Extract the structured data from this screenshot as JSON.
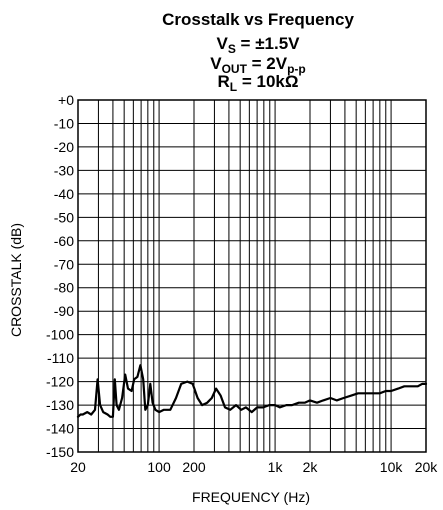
{
  "chart_data": {
    "type": "line",
    "title": {
      "line1": "Crosstalk vs Frequency",
      "line2_main": "V",
      "line2_sub": "S",
      "line2_rest": " = ±1.5V",
      "line3_main": "V",
      "line3_sub": "OUT",
      "line3_rest": " = 2V",
      "line3_sub2": "p-p",
      "line4_main": "R",
      "line4_sub": "L",
      "line4_rest": " = 10kΩ"
    },
    "xlabel": "FREQUENCY (Hz)",
    "ylabel": "CROSSTALK (dB)",
    "x_scale": "log",
    "xlim": [
      20,
      20000
    ],
    "ylim": [
      -150,
      0
    ],
    "grid": true,
    "yticks": [
      {
        "value": 0,
        "label": "+0"
      },
      {
        "value": -10,
        "label": "-10"
      },
      {
        "value": -20,
        "label": "-20"
      },
      {
        "value": -30,
        "label": "-30"
      },
      {
        "value": -40,
        "label": "-40"
      },
      {
        "value": -50,
        "label": "-50"
      },
      {
        "value": -60,
        "label": "-60"
      },
      {
        "value": -70,
        "label": "-70"
      },
      {
        "value": -80,
        "label": "-80"
      },
      {
        "value": -90,
        "label": "-90"
      },
      {
        "value": -100,
        "label": "-100"
      },
      {
        "value": -110,
        "label": "-110"
      },
      {
        "value": -120,
        "label": "-120"
      },
      {
        "value": -130,
        "label": "-130"
      },
      {
        "value": -140,
        "label": "-140"
      },
      {
        "value": -150,
        "label": "-150"
      }
    ],
    "xticks": [
      {
        "value": 20,
        "label": "20"
      },
      {
        "value": 100,
        "label": "100"
      },
      {
        "value": 200,
        "label": "200"
      },
      {
        "value": 1000,
        "label": "1k"
      },
      {
        "value": 2000,
        "label": "2k"
      },
      {
        "value": 10000,
        "label": "10k"
      },
      {
        "value": 20000,
        "label": "20k"
      }
    ],
    "series": [
      {
        "points": [
          [
            20,
            -135
          ],
          [
            21,
            -134
          ],
          [
            22,
            -134
          ],
          [
            24,
            -133
          ],
          [
            26,
            -134
          ],
          [
            28,
            -132
          ],
          [
            29.5,
            -119
          ],
          [
            31,
            -130
          ],
          [
            33,
            -133
          ],
          [
            36,
            -134
          ],
          [
            38,
            -135
          ],
          [
            40,
            -135
          ],
          [
            41.5,
            -119
          ],
          [
            43,
            -130
          ],
          [
            45,
            -132
          ],
          [
            48,
            -127
          ],
          [
            51,
            -117
          ],
          [
            54,
            -123
          ],
          [
            58,
            -124
          ],
          [
            61,
            -119
          ],
          [
            65,
            -118
          ],
          [
            69,
            -113
          ],
          [
            73,
            -119
          ],
          [
            76,
            -132
          ],
          [
            80,
            -130
          ],
          [
            84,
            -121
          ],
          [
            88,
            -129
          ],
          [
            93,
            -132
          ],
          [
            100,
            -133
          ],
          [
            110,
            -132
          ],
          [
            125,
            -132
          ],
          [
            140,
            -127
          ],
          [
            155,
            -121
          ],
          [
            175,
            -120
          ],
          [
            195,
            -121
          ],
          [
            215,
            -127
          ],
          [
            235,
            -130
          ],
          [
            260,
            -129
          ],
          [
            285,
            -127
          ],
          [
            310,
            -123
          ],
          [
            340,
            -126
          ],
          [
            370,
            -131
          ],
          [
            410,
            -132
          ],
          [
            460,
            -130
          ],
          [
            510,
            -132
          ],
          [
            560,
            -131
          ],
          [
            630,
            -133
          ],
          [
            700,
            -131
          ],
          [
            790,
            -131
          ],
          [
            890,
            -130
          ],
          [
            1000,
            -130
          ],
          [
            1100,
            -131
          ],
          [
            1250,
            -130
          ],
          [
            1400,
            -130
          ],
          [
            1600,
            -129
          ],
          [
            1800,
            -129
          ],
          [
            2000,
            -128
          ],
          [
            2300,
            -129
          ],
          [
            2600,
            -128
          ],
          [
            3000,
            -127
          ],
          [
            3400,
            -128
          ],
          [
            3900,
            -127
          ],
          [
            4500,
            -126
          ],
          [
            5200,
            -125
          ],
          [
            6000,
            -125
          ],
          [
            7000,
            -125
          ],
          [
            8000,
            -125
          ],
          [
            9000,
            -124
          ],
          [
            10000,
            -124
          ],
          [
            11500,
            -123
          ],
          [
            13000,
            -122
          ],
          [
            15000,
            -122
          ],
          [
            17000,
            -122
          ],
          [
            18500,
            -121
          ],
          [
            20000,
            -121
          ]
        ]
      }
    ]
  }
}
